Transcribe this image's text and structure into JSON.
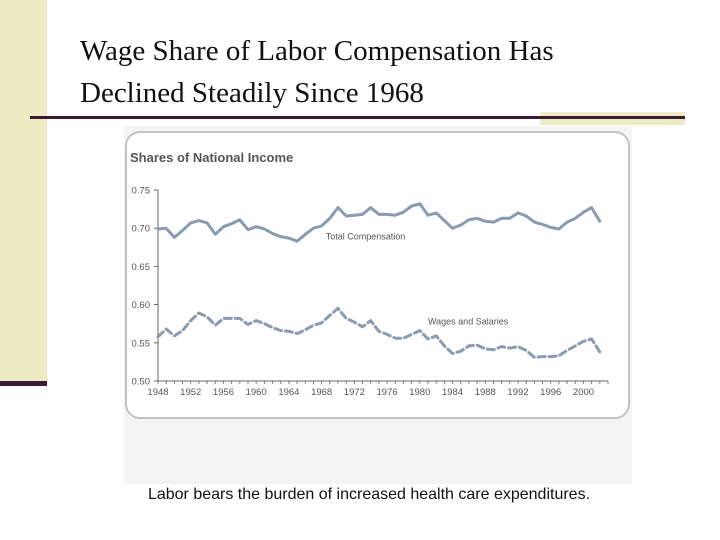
{
  "slide": {
    "title_line1": "Wage Share of Labor Compensation Has",
    "title_line2": "Declined Steadily Since 1968",
    "caption": "Labor bears the burden of increased health care expenditures."
  },
  "colors": {
    "series": "#8a9ab0",
    "text": "#555555",
    "rule": "#3a1b33",
    "accent": "#ecebc4"
  },
  "chart_data": {
    "type": "line",
    "title": "Shares of National Income",
    "xlabel": "",
    "ylabel": "",
    "xlim": [
      1948,
      2003
    ],
    "ylim": [
      0.5,
      0.75
    ],
    "x_ticks": [
      "1948",
      "1952",
      "1956",
      "1960",
      "1964",
      "1968",
      "1972",
      "1976",
      "1980",
      "1984",
      "1988",
      "1992",
      "1996",
      "2000"
    ],
    "y_ticks": [
      "0.75",
      "0.70",
      "0.65",
      "0.60",
      "0.55",
      "0.50"
    ],
    "grid": false,
    "legend": "inline labels",
    "series": [
      {
        "name": "Total Compensation",
        "style": "solid",
        "x": [
          1948,
          1949,
          1950,
          1951,
          1952,
          1953,
          1954,
          1955,
          1956,
          1957,
          1958,
          1959,
          1960,
          1961,
          1962,
          1963,
          1964,
          1965,
          1966,
          1967,
          1968,
          1969,
          1970,
          1971,
          1972,
          1973,
          1974,
          1975,
          1976,
          1977,
          1978,
          1979,
          1980,
          1981,
          1982,
          1983,
          1984,
          1985,
          1986,
          1987,
          1988,
          1989,
          1990,
          1991,
          1992,
          1993,
          1994,
          1995,
          1996,
          1997,
          1998,
          1999,
          2000,
          2001,
          2002
        ],
        "y": [
          0.699,
          0.7,
          0.688,
          0.697,
          0.707,
          0.71,
          0.707,
          0.692,
          0.702,
          0.706,
          0.711,
          0.698,
          0.702,
          0.699,
          0.693,
          0.689,
          0.687,
          0.683,
          0.692,
          0.7,
          0.703,
          0.713,
          0.727,
          0.716,
          0.717,
          0.718,
          0.727,
          0.718,
          0.718,
          0.717,
          0.721,
          0.729,
          0.732,
          0.717,
          0.72,
          0.71,
          0.7,
          0.704,
          0.711,
          0.713,
          0.709,
          0.708,
          0.713,
          0.713,
          0.72,
          0.716,
          0.708,
          0.705,
          0.701,
          0.699,
          0.708,
          0.713,
          0.721,
          0.727,
          0.709
        ]
      },
      {
        "name": "Wages and Salaries",
        "style": "dashed",
        "x": [
          1948,
          1949,
          1950,
          1951,
          1952,
          1953,
          1954,
          1955,
          1956,
          1957,
          1958,
          1959,
          1960,
          1961,
          1962,
          1963,
          1964,
          1965,
          1966,
          1967,
          1968,
          1969,
          1970,
          1971,
          1972,
          1973,
          1974,
          1975,
          1976,
          1977,
          1978,
          1979,
          1980,
          1981,
          1982,
          1983,
          1984,
          1985,
          1986,
          1987,
          1988,
          1989,
          1990,
          1991,
          1992,
          1993,
          1994,
          1995,
          1996,
          1997,
          1998,
          1999,
          2000,
          2001,
          2002
        ],
        "y": [
          0.558,
          0.568,
          0.559,
          0.566,
          0.579,
          0.589,
          0.584,
          0.573,
          0.582,
          0.582,
          0.582,
          0.574,
          0.579,
          0.575,
          0.57,
          0.566,
          0.565,
          0.562,
          0.567,
          0.573,
          0.576,
          0.586,
          0.595,
          0.582,
          0.577,
          0.571,
          0.579,
          0.565,
          0.561,
          0.556,
          0.556,
          0.561,
          0.566,
          0.555,
          0.559,
          0.546,
          0.536,
          0.539,
          0.546,
          0.547,
          0.542,
          0.541,
          0.545,
          0.543,
          0.545,
          0.54,
          0.531,
          0.532,
          0.532,
          0.533,
          0.54,
          0.546,
          0.552,
          0.555,
          0.538
        ]
      }
    ]
  }
}
